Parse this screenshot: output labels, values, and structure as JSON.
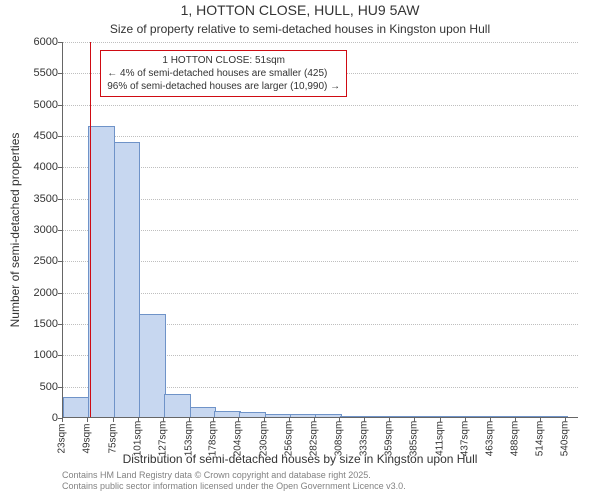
{
  "chart": {
    "type": "histogram",
    "title": "1, HOTTON CLOSE, HULL, HU9 5AW",
    "subtitle": "Size of property relative to semi-detached houses in Kingston upon Hull",
    "x_axis_label": "Distribution of semi-detached houses by size in Kingston upon Hull",
    "y_axis_label": "Number of semi-detached properties",
    "title_fontsize": 14,
    "subtitle_fontsize": 12,
    "axis_label_fontsize": 12,
    "tick_fontsize": 11,
    "background_color": "#ffffff",
    "grid_color": "#bfbfbf",
    "grid_style": "dotted",
    "bar_fill": "#c7d7f0",
    "bar_stroke": "#6f93c8",
    "marker_color": "#cf0b13",
    "callout_border": "#cf0b13",
    "ylim": [
      0,
      6000
    ],
    "ytick_step": 500,
    "yticks": [
      0,
      500,
      1000,
      1500,
      2000,
      2500,
      3000,
      3500,
      4000,
      4500,
      5000,
      5500,
      6000
    ],
    "xlim": [
      23,
      553
    ],
    "xticks": [
      23,
      49,
      75,
      101,
      127,
      153,
      178,
      204,
      230,
      256,
      282,
      308,
      333,
      359,
      385,
      411,
      437,
      463,
      488,
      514,
      540
    ],
    "xtick_labels": [
      "23sqm",
      "49sqm",
      "75sqm",
      "101sqm",
      "127sqm",
      "153sqm",
      "178sqm",
      "204sqm",
      "230sqm",
      "256sqm",
      "282sqm",
      "308sqm",
      "333sqm",
      "359sqm",
      "385sqm",
      "411sqm",
      "437sqm",
      "463sqm",
      "488sqm",
      "514sqm",
      "540sqm"
    ],
    "bar_width_data": 26,
    "bars": [
      {
        "x0": 23,
        "value": 300
      },
      {
        "x0": 49,
        "value": 4620
      },
      {
        "x0": 75,
        "value": 4380
      },
      {
        "x0": 101,
        "value": 1620
      },
      {
        "x0": 127,
        "value": 350
      },
      {
        "x0": 153,
        "value": 150
      },
      {
        "x0": 178,
        "value": 80
      },
      {
        "x0": 204,
        "value": 60
      },
      {
        "x0": 230,
        "value": 40
      },
      {
        "x0": 256,
        "value": 30
      },
      {
        "x0": 282,
        "value": 25
      },
      {
        "x0": 308,
        "value": 0
      },
      {
        "x0": 333,
        "value": 0
      },
      {
        "x0": 359,
        "value": 0
      },
      {
        "x0": 385,
        "value": 0
      },
      {
        "x0": 411,
        "value": 0
      },
      {
        "x0": 437,
        "value": 0
      },
      {
        "x0": 463,
        "value": 0
      },
      {
        "x0": 488,
        "value": 0
      },
      {
        "x0": 514,
        "value": 0
      }
    ],
    "marker_x": 51,
    "callout": {
      "title": "1 HOTTON CLOSE: 51sqm",
      "line_smaller": "← 4% of semi-detached houses are smaller (425)",
      "line_larger": "96% of semi-detached houses are larger (10,990) →"
    }
  },
  "footer": {
    "line1": "Contains HM Land Registry data © Crown copyright and database right 2025.",
    "line2": "Contains public sector information licensed under the Open Government Licence v3.0."
  }
}
